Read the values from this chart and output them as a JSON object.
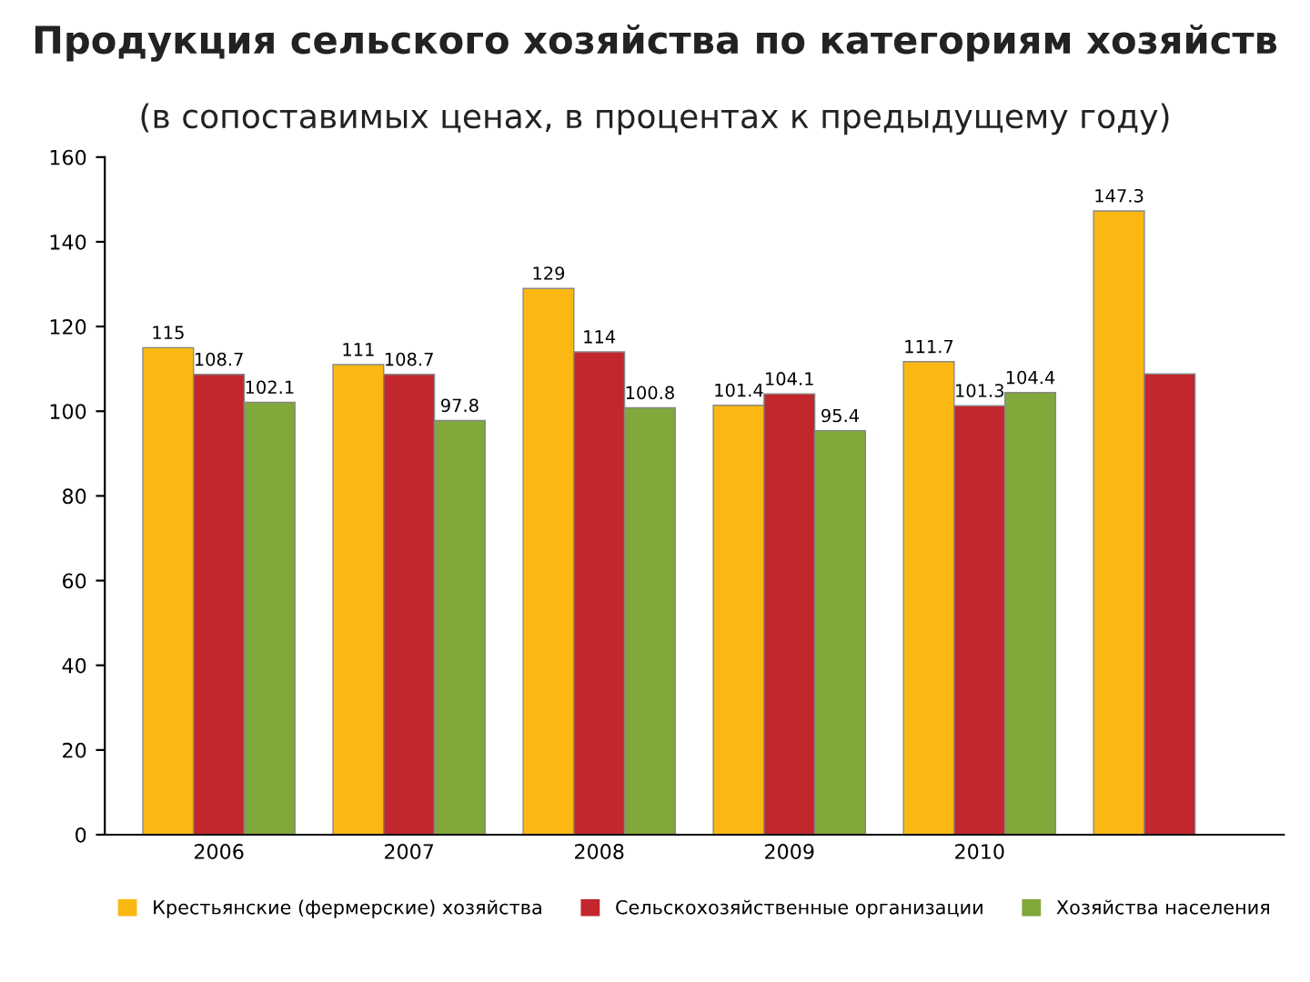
{
  "chart_data": {
    "type": "bar",
    "title": "Продукция сельского хозяйства по категориям хозяйств",
    "subtitle": "(в сопоставимых ценах, в процентах к предыдущему году)",
    "categories": [
      "2006",
      "2007",
      "2008",
      "2009",
      "2010",
      null
    ],
    "series": [
      {
        "name": "Крестьянские (фермерские) хозяйства",
        "color": "#fbb813",
        "values": [
          115,
          111,
          129,
          101.4,
          111.7,
          147.3
        ],
        "value_labels": [
          "115",
          "111",
          "129",
          "101.4",
          "111.7",
          "147.3"
        ]
      },
      {
        "name": "Сельскохозяйственные организации",
        "color": "#c1272d",
        "values": [
          108.7,
          108.7,
          114,
          104.1,
          101.3,
          108.8
        ],
        "value_labels": [
          "108.7",
          "108.7",
          "114",
          "104.1",
          "101.3",
          null
        ]
      },
      {
        "name": "Хозяйства населения",
        "color": "#80a83a",
        "values": [
          102.1,
          97.8,
          100.8,
          95.4,
          104.4,
          null
        ],
        "value_labels": [
          "102.1",
          "97.8",
          "100.8",
          "95.4",
          "104.4",
          null
        ]
      }
    ],
    "ylim": [
      0,
      160
    ],
    "yticks": [
      0,
      20,
      40,
      60,
      80,
      100,
      120,
      140,
      160
    ],
    "grid": false,
    "legend": "bottom"
  }
}
